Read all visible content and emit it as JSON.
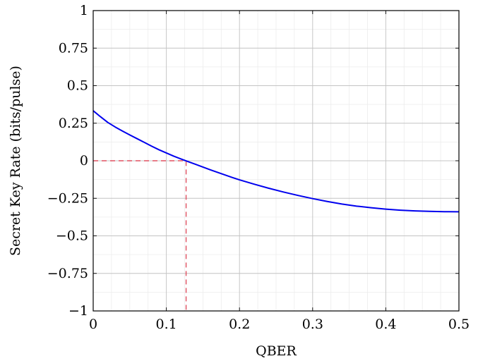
{
  "chart_data": {
    "type": "line",
    "title": "",
    "xlabel": "QBER",
    "ylabel": "Secret Key Rate (bits/pulse)",
    "xlim": [
      0,
      0.5
    ],
    "ylim": [
      -1,
      1
    ],
    "grid": true,
    "x_ticks": [
      0,
      0.1,
      0.2,
      0.3,
      0.4,
      0.5
    ],
    "x_tick_labels": [
      "0",
      "0.1",
      "0.2",
      "0.3",
      "0.4",
      "0.5"
    ],
    "y_ticks": [
      -1,
      -0.75,
      -0.5,
      -0.25,
      0,
      0.25,
      0.5,
      0.75,
      1
    ],
    "y_tick_labels": [
      "−1",
      "−0.75",
      "−0.5",
      "−0.25",
      "0",
      "0.25",
      "0.5",
      "0.75",
      "1"
    ],
    "x_minor_step": 0.025,
    "y_minor_step": 0.125,
    "series": [
      {
        "color": "#0000ee",
        "style": "solid",
        "x": [
          0,
          0.01,
          0.02,
          0.03,
          0.04,
          0.05,
          0.06,
          0.07,
          0.08,
          0.09,
          0.1,
          0.11,
          0.12,
          0.13,
          0.14,
          0.15,
          0.16,
          0.17,
          0.18,
          0.19,
          0.2,
          0.22,
          0.24,
          0.26,
          0.28,
          0.3,
          0.32,
          0.34,
          0.36,
          0.38,
          0.4,
          0.42,
          0.44,
          0.46,
          0.48,
          0.5
        ],
        "y": [
          0.333,
          0.293,
          0.255,
          0.225,
          0.198,
          0.172,
          0.147,
          0.122,
          0.097,
          0.073,
          0.052,
          0.031,
          0.012,
          -0.006,
          -0.024,
          -0.042,
          -0.06,
          -0.077,
          -0.094,
          -0.111,
          -0.127,
          -0.156,
          -0.183,
          -0.208,
          -0.231,
          -0.252,
          -0.271,
          -0.288,
          -0.302,
          -0.313,
          -0.322,
          -0.329,
          -0.334,
          -0.337,
          -0.339,
          -0.34
        ]
      }
    ],
    "reference_lines": [
      {
        "color": "#e05060",
        "style": "dashed",
        "x": [
          0,
          0.127,
          0.127
        ],
        "y": [
          0,
          0,
          -1
        ]
      }
    ]
  }
}
